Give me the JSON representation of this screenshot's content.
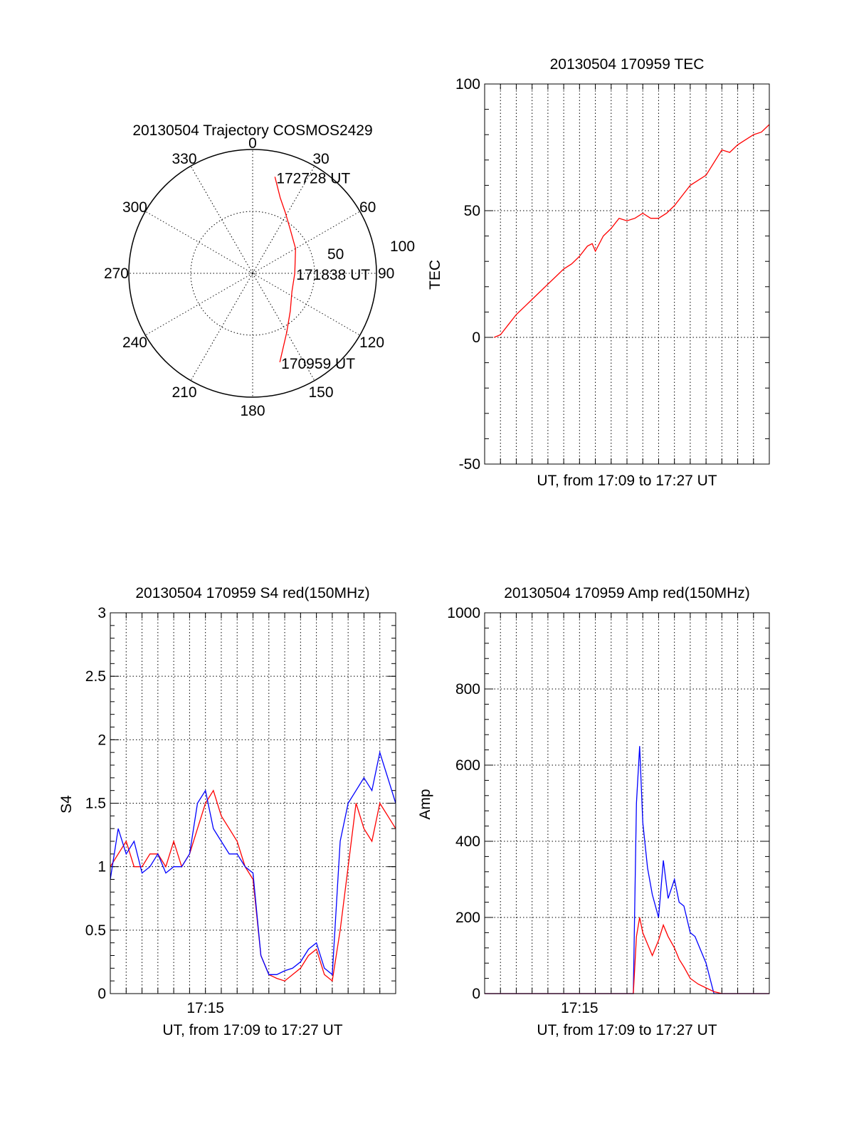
{
  "chart_data": [
    {
      "type": "polar-trajectory",
      "title": "20130504 Trajectory COSMOS2429",
      "azimuth_labels": [
        "0",
        "30",
        "60",
        "90",
        "120",
        "150",
        "180",
        "210",
        "240",
        "270",
        "300",
        "330"
      ],
      "radial_labels": [
        "50",
        "100"
      ],
      "radial_range": [
        0,
        100
      ],
      "direction": "clockwise-from-north",
      "series": [
        {
          "color": "#ff0000",
          "points": [
            {
              "az": 13,
              "r": 80
            },
            {
              "az": 20,
              "r": 65
            },
            {
              "az": 28,
              "r": 56
            },
            {
              "az": 40,
              "r": 47
            },
            {
              "az": 60,
              "r": 40
            },
            {
              "az": 90,
              "r": 34
            },
            {
              "az": 115,
              "r": 35
            },
            {
              "az": 135,
              "r": 43
            },
            {
              "az": 150,
              "r": 55
            },
            {
              "az": 163,
              "r": 75
            }
          ]
        }
      ],
      "annotations": [
        {
          "text": "172728 UT",
          "az": 13,
          "r": 80
        },
        {
          "text": "171838 UT",
          "az": 90,
          "r": 34
        },
        {
          "text": "170959 UT",
          "az": 163,
          "r": 75
        }
      ]
    },
    {
      "type": "line",
      "title": "20130504 170959 TEC",
      "xlabel": "UT, from 17:09 to 17:27 UT",
      "ylabel": "TEC",
      "ylim": [
        -50,
        100
      ],
      "yticks": [
        "-50",
        "0",
        "50",
        "100"
      ],
      "xlim_minutes": [
        0,
        18
      ],
      "grid": "vertical-dotted-and-y-major",
      "series": [
        {
          "color": "#ff0000",
          "x": [
            0.6,
            1.0,
            1.5,
            2.0,
            2.5,
            3.0,
            3.5,
            4.0,
            4.5,
            5.0,
            5.5,
            6.0,
            6.5,
            6.8,
            7.0,
            7.5,
            8.0,
            8.5,
            9.0,
            9.5,
            10.0,
            10.5,
            11.0,
            11.5,
            12.0,
            12.5,
            13.0,
            14.0,
            15.0,
            15.5,
            16.0,
            16.5,
            17.0,
            17.5,
            18.0
          ],
          "y": [
            0,
            1,
            5,
            9,
            12,
            15,
            18,
            21,
            24,
            27,
            29,
            32,
            36,
            37,
            34,
            40,
            43,
            47,
            46,
            47,
            49,
            47,
            47,
            49,
            52,
            56,
            60,
            64,
            74,
            73,
            76,
            78,
            80,
            81,
            84
          ]
        }
      ]
    },
    {
      "type": "line",
      "title": "20130504 170959 S4 red(150MHz)",
      "xlabel": "UT, from 17:09 to 17:27 UT",
      "xtick_labels": [
        "17:15"
      ],
      "ylabel": "S4",
      "ylim": [
        0,
        3
      ],
      "yticks": [
        "0",
        "0.5",
        "1",
        "1.5",
        "2",
        "2.5",
        "3"
      ],
      "xlim_minutes": [
        0,
        18
      ],
      "grid": "vertical-dotted-and-y-major",
      "series": [
        {
          "color": "#ff0000",
          "x": [
            0,
            0.5,
            1.0,
            1.5,
            2.0,
            2.5,
            3.0,
            3.5,
            4.0,
            4.5,
            5.0,
            5.5,
            6.0,
            6.5,
            7.0,
            7.5,
            8.0,
            8.5,
            9.0,
            9.5,
            10.0,
            10.5,
            11.0,
            11.5,
            12.0,
            12.5,
            13.0,
            13.5,
            14.0,
            14.5,
            15.0,
            15.5,
            16.0,
            16.5,
            17.0,
            17.5,
            18.0
          ],
          "y": [
            1.0,
            1.1,
            1.2,
            1.0,
            1.0,
            1.1,
            1.1,
            1.0,
            1.2,
            1.0,
            1.1,
            1.3,
            1.5,
            1.6,
            1.4,
            1.3,
            1.2,
            1.0,
            0.9,
            0.3,
            0.15,
            0.12,
            0.1,
            0.15,
            0.2,
            0.3,
            0.35,
            0.15,
            0.1,
            0.5,
            1.0,
            1.5,
            1.3,
            1.2,
            1.5,
            1.4,
            1.3
          ]
        },
        {
          "color": "#0000ff",
          "x": [
            0,
            0.5,
            1.0,
            1.5,
            2.0,
            2.5,
            3.0,
            3.5,
            4.0,
            4.5,
            5.0,
            5.5,
            6.0,
            6.5,
            7.0,
            7.5,
            8.0,
            8.5,
            9.0,
            9.5,
            10.0,
            10.5,
            11.0,
            11.5,
            12.0,
            12.5,
            13.0,
            13.5,
            14.0,
            14.5,
            15.0,
            15.5,
            16.0,
            16.5,
            17.0,
            17.5,
            18.0
          ],
          "y": [
            0.9,
            1.3,
            1.1,
            1.2,
            0.95,
            1.0,
            1.1,
            0.95,
            1.0,
            1.0,
            1.1,
            1.5,
            1.6,
            1.3,
            1.2,
            1.1,
            1.1,
            1.0,
            0.95,
            0.3,
            0.15,
            0.15,
            0.18,
            0.2,
            0.25,
            0.35,
            0.4,
            0.2,
            0.15,
            1.2,
            1.5,
            1.6,
            1.7,
            1.6,
            1.9,
            1.7,
            1.5
          ]
        }
      ]
    },
    {
      "type": "line",
      "title": "20130504 170959 Amp red(150MHz)",
      "xlabel": "UT, from 17:09 to 17:27 UT",
      "xtick_labels": [
        "17:15"
      ],
      "ylabel": "Amp",
      "ylim": [
        0,
        1000
      ],
      "yticks": [
        "0",
        "200",
        "400",
        "600",
        "800",
        "1000"
      ],
      "xlim_minutes": [
        0,
        18
      ],
      "grid": "vertical-dotted-and-y-major",
      "series": [
        {
          "color": "#0000ff",
          "x": [
            0,
            4,
            8,
            9.4,
            9.6,
            9.8,
            10.0,
            10.3,
            10.6,
            11.0,
            11.3,
            11.6,
            12.0,
            12.3,
            12.6,
            13.0,
            13.3,
            13.6,
            14.0,
            14.5,
            15.0,
            16.0,
            17.0,
            18.0
          ],
          "y": [
            0,
            0,
            0,
            0,
            500,
            650,
            450,
            330,
            260,
            200,
            350,
            250,
            300,
            240,
            230,
            160,
            150,
            120,
            80,
            0,
            0,
            0,
            0,
            0
          ]
        },
        {
          "color": "#ff0000",
          "x": [
            0,
            8,
            9.4,
            9.6,
            9.8,
            10.0,
            10.3,
            10.6,
            11.0,
            11.3,
            11.6,
            12.0,
            12.3,
            12.6,
            13.0,
            13.5,
            14.0,
            14.5,
            15.0,
            18.0
          ],
          "y": [
            0,
            0,
            0,
            150,
            200,
            160,
            130,
            100,
            140,
            180,
            150,
            120,
            90,
            70,
            40,
            25,
            15,
            5,
            0,
            0
          ]
        }
      ]
    }
  ]
}
